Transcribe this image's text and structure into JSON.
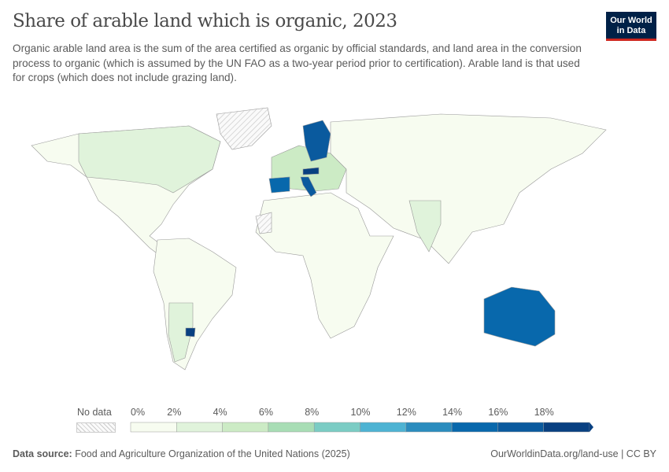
{
  "header": {
    "title": "Share of arable land which is organic, 2023",
    "subtitle": "Organic arable land area is the sum of the area certified as organic by official standards, and land area in the conversion process to organic (which is assumed by the UN FAO as a two-year period prior to certification). Arable land is that used for crops (which does not include grazing land).",
    "logo": "Our World in Data"
  },
  "legend": {
    "no_data_label": "No data",
    "ticks": [
      "0%",
      "2%",
      "4%",
      "6%",
      "8%",
      "10%",
      "12%",
      "14%",
      "16%",
      "18%"
    ],
    "colors": [
      "#f7fcf0",
      "#e0f3db",
      "#ccebc5",
      "#a8ddb5",
      "#7bccc4",
      "#4eb3d3",
      "#2b8cbe",
      "#0868ac",
      "#0a5a9e",
      "#084081"
    ]
  },
  "map": {
    "regions": [
      {
        "name": "north-america",
        "bucket": 0
      },
      {
        "name": "canada",
        "bucket": 1
      },
      {
        "name": "greenland",
        "bucket": null
      },
      {
        "name": "south-america",
        "bucket": 0
      },
      {
        "name": "argentina",
        "bucket": 1
      },
      {
        "name": "uruguay",
        "bucket": 9
      },
      {
        "name": "africa",
        "bucket": 0
      },
      {
        "name": "western-sahara",
        "bucket": null
      },
      {
        "name": "europe-west",
        "bucket": 2
      },
      {
        "name": "spain",
        "bucket": 7
      },
      {
        "name": "italy",
        "bucket": 8
      },
      {
        "name": "scandinavia",
        "bucket": 8
      },
      {
        "name": "austria",
        "bucket": 9
      },
      {
        "name": "russia-asia",
        "bucket": 0
      },
      {
        "name": "india",
        "bucket": 1
      },
      {
        "name": "australia",
        "bucket": 7
      }
    ]
  },
  "footer": {
    "source_label": "Data source:",
    "source": "Food and Agriculture Organization of the United Nations (2025)",
    "link": "OurWorldinData.org/land-use | CC BY"
  }
}
